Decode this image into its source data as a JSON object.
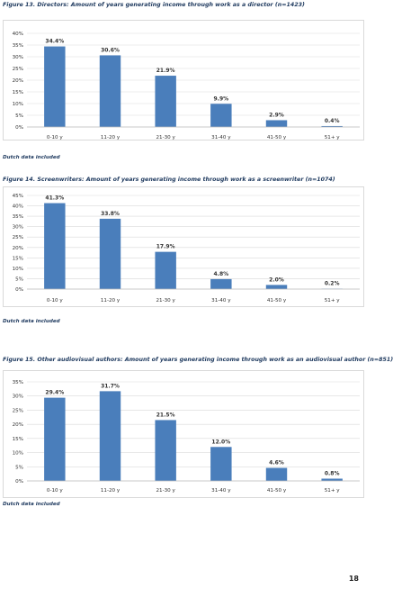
{
  "page_number": "18",
  "note_text": "Dutch data included",
  "bar_color": "#4a7ebb",
  "grid_color": "#d9d9d9",
  "chart_data": [
    {
      "type": "bar",
      "title": "Figure 13. Directors: Amount of years generating income through work as a director (n=1423)",
      "categories": [
        "0-10 y",
        "11-20 y",
        "21-30 y",
        "31-40 y",
        "41-50 y",
        "51+ y"
      ],
      "values": [
        34.4,
        30.6,
        21.9,
        9.9,
        2.9,
        0.4
      ],
      "value_labels": [
        "34.4%",
        "30.6%",
        "21.9%",
        "9.9%",
        "2.9%",
        "0.4%"
      ],
      "yticks": [
        "0%",
        "5%",
        "10%",
        "15%",
        "20%",
        "25%",
        "30%",
        "35%",
        "40%"
      ],
      "ylim": [
        0,
        40
      ],
      "grid": true
    },
    {
      "type": "bar",
      "title": "Figure 14. Screenwriters: Amount of years generating income through work as a screenwriter (n=1074)",
      "categories": [
        "0-10 y",
        "11-20 y",
        "21-30 y",
        "31-40 y",
        "41-50 y",
        "51+ y"
      ],
      "values": [
        41.3,
        33.8,
        17.9,
        4.8,
        2.0,
        0.2
      ],
      "value_labels": [
        "41.3%",
        "33.8%",
        "17.9%",
        "4.8%",
        "2.0%",
        "0.2%"
      ],
      "yticks": [
        "0%",
        "5%",
        "10%",
        "15%",
        "20%",
        "25%",
        "30%",
        "35%",
        "40%",
        "45%"
      ],
      "ylim": [
        0,
        45
      ],
      "grid": true
    },
    {
      "type": "bar",
      "title": "Figure 15. Other audiovisual authors: Amount of years generating income through work as an audiovisual author (n=851)",
      "categories": [
        "0-10 y",
        "11-20 y",
        "21-30 y",
        "31-40 y",
        "41-50 y",
        "51+ y"
      ],
      "values": [
        29.4,
        31.7,
        21.5,
        12.0,
        4.6,
        0.8
      ],
      "value_labels": [
        "29.4%",
        "31.7%",
        "21.5%",
        "12.0%",
        "4.6%",
        "0.8%"
      ],
      "yticks": [
        "0%",
        "5%",
        "10%",
        "15%",
        "20%",
        "25%",
        "30%",
        "35%"
      ],
      "ylim": [
        0,
        35
      ],
      "grid": true
    }
  ]
}
